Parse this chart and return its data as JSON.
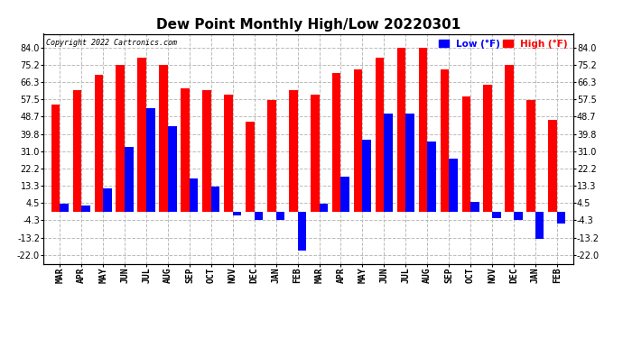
{
  "title": "Dew Point Monthly High/Low 20220301",
  "copyright": "Copyright 2022 Cartronics.com",
  "legend_low_label": "Low (°F)",
  "legend_high_label": "High (°F)",
  "months": [
    "MAR",
    "APR",
    "MAY",
    "JUN",
    "JUL",
    "AUG",
    "SEP",
    "OCT",
    "NOV",
    "DEC",
    "JAN",
    "FEB",
    "MAR",
    "APR",
    "MAY",
    "JUN",
    "JUL",
    "AUG",
    "SEP",
    "OCT",
    "NOV",
    "DEC",
    "JAN",
    "FEB"
  ],
  "high_values": [
    55,
    62,
    70,
    75,
    79,
    75,
    63,
    62,
    60,
    46,
    57,
    62,
    60,
    71,
    73,
    79,
    84,
    84,
    73,
    59,
    65,
    75,
    57,
    47
  ],
  "low_values": [
    4,
    3,
    12,
    33,
    53,
    44,
    17,
    13,
    -2,
    -4,
    -4,
    -20,
    4,
    18,
    37,
    50,
    50,
    36,
    27,
    5,
    -3,
    -4,
    -14,
    -6
  ],
  "bar_color_high": "#ff0000",
  "bar_color_low": "#0000ff",
  "ytick_values": [
    -22.0,
    -13.2,
    -4.3,
    4.5,
    13.3,
    22.2,
    31.0,
    39.8,
    48.7,
    57.5,
    66.3,
    75.2,
    84.0
  ],
  "ytick_labels": [
    "-22.0",
    "-13.2",
    "-4.3",
    "4.5",
    "13.3",
    "22.2",
    "31.0",
    "39.8",
    "48.7",
    "57.5",
    "66.3",
    "75.2",
    "84.0"
  ],
  "ylim": [
    -26.5,
    91.0
  ],
  "background_color": "#ffffff",
  "grid_color": "#bbbbbb",
  "title_fontsize": 11,
  "tick_fontsize": 7,
  "bar_width": 0.4
}
